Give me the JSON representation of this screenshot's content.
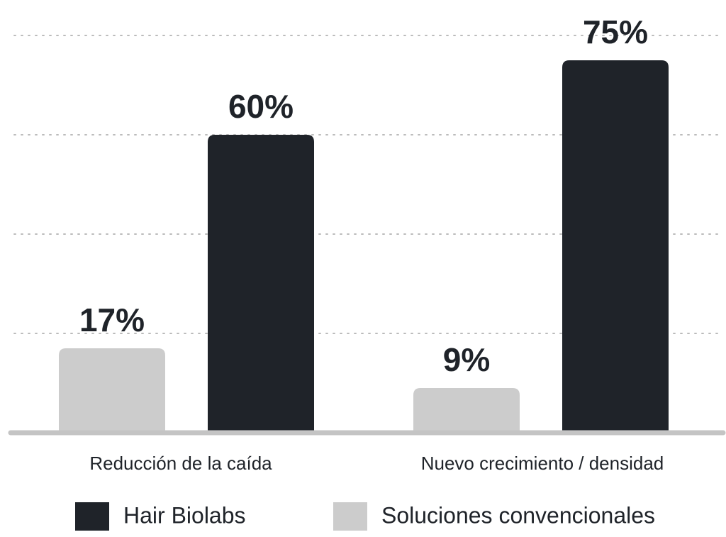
{
  "chart_data": {
    "type": "bar",
    "categories": [
      "Reducción de la caída",
      "Nuevo crecimiento / densidad"
    ],
    "series": [
      {
        "name": "Hair Biolabs",
        "color": "#1f2329",
        "values": [
          60,
          75
        ],
        "value_labels": [
          "60%",
          "75%"
        ]
      },
      {
        "name": "Soluciones convencionales",
        "color": "#cccccc",
        "values": [
          17,
          9
        ],
        "value_labels": [
          "17%",
          "9%"
        ]
      }
    ],
    "ylim": [
      0,
      80
    ],
    "yticks": [
      20,
      40,
      60,
      80
    ],
    "grid": true
  }
}
